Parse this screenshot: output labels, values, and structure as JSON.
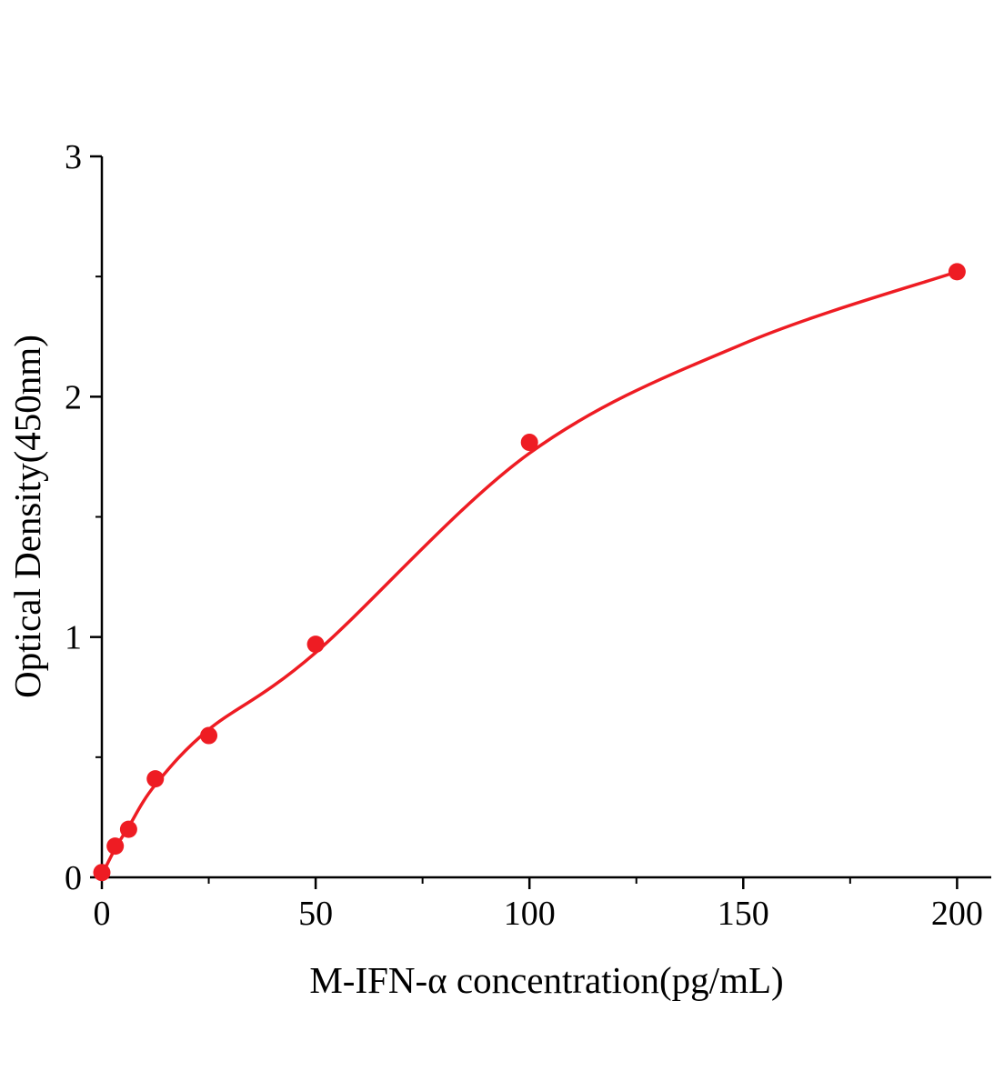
{
  "chart_data": {
    "type": "scatter",
    "title": "",
    "xlabel": "M-IFN-α concentration(pg/mL)",
    "ylabel": "Optical Density(450nm)",
    "xlim": [
      0,
      208
    ],
    "ylim": [
      0,
      3
    ],
    "x_ticks": [
      0,
      50,
      100,
      150,
      200
    ],
    "y_ticks": [
      0,
      1,
      2,
      3
    ],
    "x_minor_interval": 25,
    "y_minor_interval": 0.5,
    "grid": false,
    "legend": "none",
    "points": [
      {
        "x": 0,
        "y": 0.02
      },
      {
        "x": 3.125,
        "y": 0.13
      },
      {
        "x": 6.25,
        "y": 0.2
      },
      {
        "x": 12.5,
        "y": 0.41
      },
      {
        "x": 25,
        "y": 0.59
      },
      {
        "x": 50,
        "y": 0.97
      },
      {
        "x": 100,
        "y": 1.81
      },
      {
        "x": 200,
        "y": 2.52
      }
    ],
    "curve": [
      {
        "x": 0,
        "y": 0.01
      },
      {
        "x": 3.125,
        "y": 0.12
      },
      {
        "x": 6.25,
        "y": 0.21
      },
      {
        "x": 12.5,
        "y": 0.385
      },
      {
        "x": 25,
        "y": 0.615
      },
      {
        "x": 50,
        "y": 0.935
      },
      {
        "x": 100,
        "y": 1.765
      },
      {
        "x": 150,
        "y": 2.22
      },
      {
        "x": 200,
        "y": 2.52
      }
    ],
    "point_color": "#ee1c23",
    "curve_color": "#ee1c23",
    "axis_color": "#000000",
    "marker_radius": 9.5
  }
}
